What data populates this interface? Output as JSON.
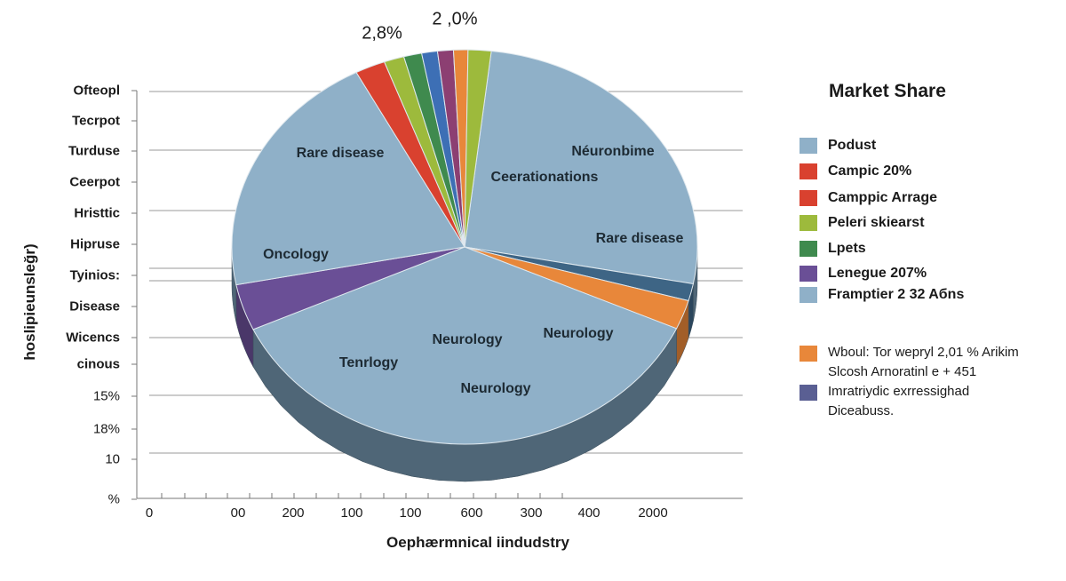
{
  "chart_data": {
    "type": "pie",
    "style": "3d",
    "title": "Market Share",
    "slices": [
      {
        "label": "Néuronbime / Rare disease",
        "value": 26.2,
        "color": "#8fb0c8"
      },
      {
        "label": "",
        "value": 1.4,
        "color": "#3e6585"
      },
      {
        "label": "",
        "value": 2.4,
        "color": "#e8873a"
      },
      {
        "label": "Neurology",
        "value": 36.4,
        "color": "#8fb0c8"
      },
      {
        "label": "",
        "value": 3.8,
        "color": "#6a4f96"
      },
      {
        "label": "Oncology / Rare disease",
        "value": 20.4,
        "color": "#8fb0c8"
      },
      {
        "label": "",
        "value": 2.1,
        "color": "#d9412f"
      },
      {
        "label": "",
        "value": 1.4,
        "color": "#9dba3c"
      },
      {
        "label": "",
        "value": 1.25,
        "color": "#3f8a4e"
      },
      {
        "label": "",
        "value": 1.1,
        "color": "#3d6fb5"
      },
      {
        "label": "",
        "value": 1.1,
        "color": "#8c3f72"
      },
      {
        "label": "",
        "value": 1.0,
        "color": "#e8873a"
      },
      {
        "label": "",
        "value": 1.6,
        "color": "#9dba3c"
      }
    ],
    "slice_labels": [
      "Rare disease",
      "Néuronbime",
      "Ceerationations",
      "Rare disease",
      "Oncology",
      "Neurology",
      "Neurology",
      "Tenrlogy",
      "Neurology"
    ],
    "top_annotations": [
      "2,8%",
      "2 ,0%"
    ],
    "ylabel": "hoslipieunsleğr)",
    "xlabel": "Oephærmnical iindudstry",
    "ytick_labels": [
      "Ofteopl",
      "Tecrpot",
      "Turduse",
      "Ceerpot",
      "Hristtic",
      "Hipruse",
      "Tyinios:",
      "Disease",
      "Wicencs",
      "cinous",
      "15%",
      "18%",
      "10",
      "%"
    ],
    "xtick_labels": [
      "0",
      "00",
      "200",
      "100",
      "100",
      "600",
      "300",
      "400",
      "2000"
    ],
    "grid": true,
    "legend_placement": "right",
    "legend": [
      {
        "label": "Podust",
        "color": "#8fb0c8"
      },
      {
        "label": "Campic  20%",
        "color": "#d9412f"
      },
      {
        "label": "Camppic Arrage",
        "color": "#d9412f"
      },
      {
        "label": "Peleri skiearst",
        "color": "#9dba3c"
      },
      {
        "label": "Lpets",
        "color": "#3f8a4e"
      },
      {
        "label": "Lenegue  207%",
        "color": "#6a4f96"
      },
      {
        "label": "Framptier 2 32 Aбns",
        "color": "#8fb0c8"
      }
    ],
    "notes": [
      {
        "color": "#e8873a",
        "lines": [
          "Wboul: Tor wepryl  2,01 % Arikim",
          "Slcosh Arnoratinl e + 451"
        ]
      },
      {
        "color": "#5a5f93",
        "lines": [
          "Imratriydic exrressighad",
          "Diceabuss."
        ]
      }
    ]
  }
}
